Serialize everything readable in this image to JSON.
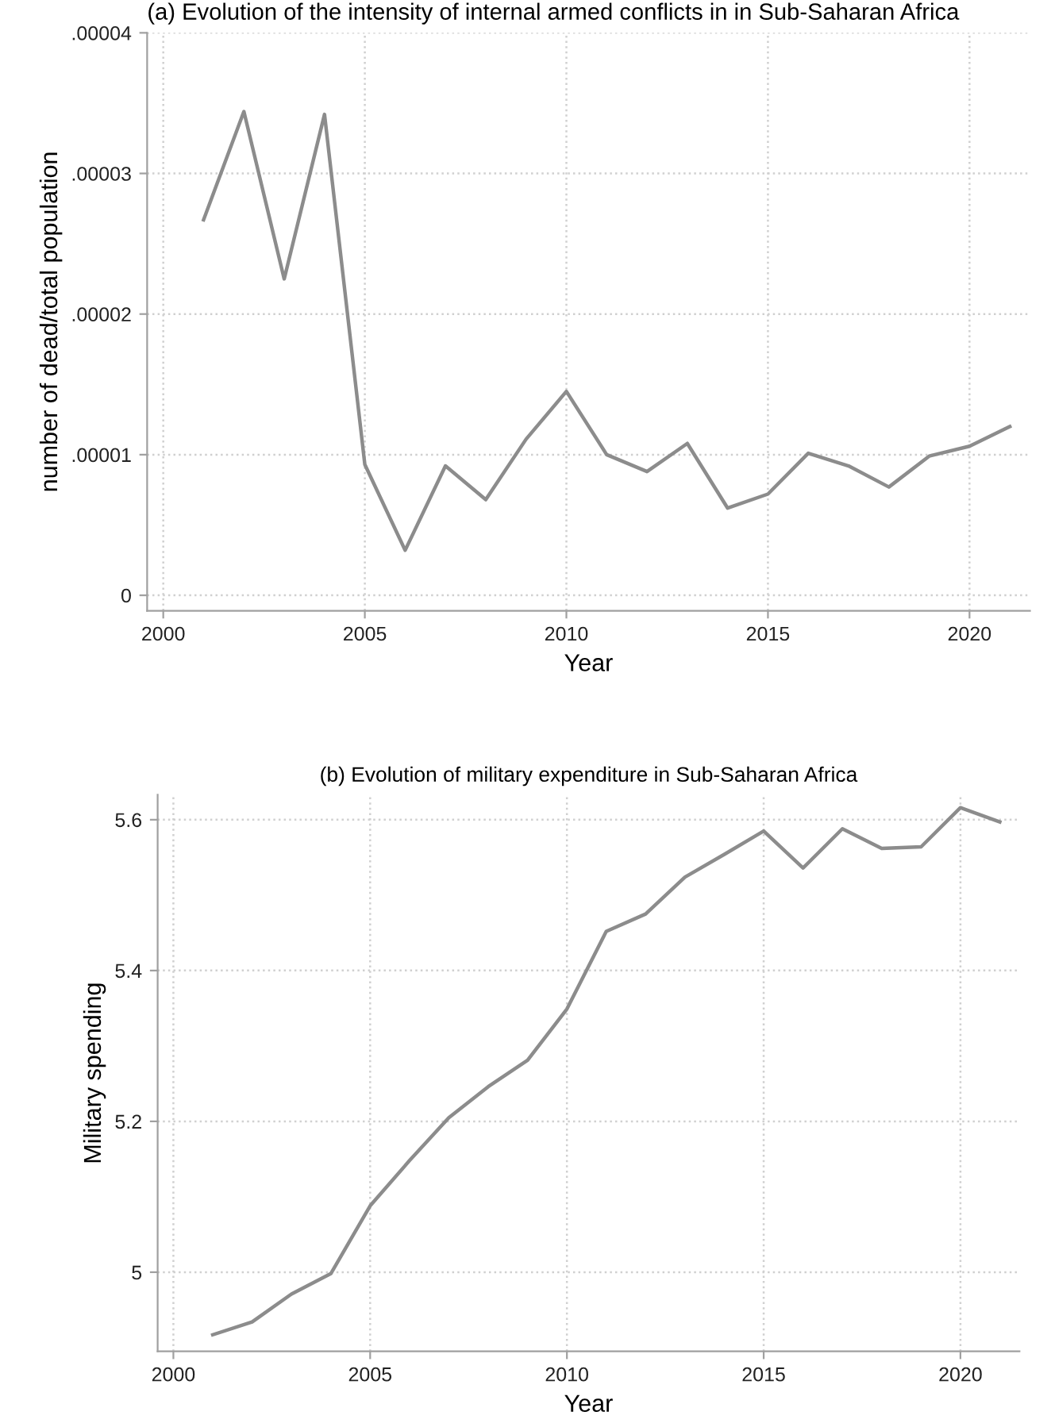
{
  "chart_data": [
    {
      "type": "line",
      "title": "(a) Evolution of the intensity of internal armed conflicts in in Sub-Saharan Africa",
      "xlabel": "Year",
      "ylabel": "number of dead/total population",
      "x": [
        2001,
        2002,
        2003,
        2004,
        2005,
        2006,
        2007,
        2008,
        2009,
        2010,
        2011,
        2012,
        2013,
        2014,
        2015,
        2016,
        2017,
        2018,
        2019,
        2020,
        2021
      ],
      "series": [
        {
          "color": "#8c8c8c",
          "values": [
            2.67e-05,
            3.44e-05,
            2.25e-05,
            3.42e-05,
            9.3e-06,
            3.2e-06,
            9.2e-06,
            6.8e-06,
            1.11e-05,
            1.45e-05,
            1e-05,
            8.8e-06,
            1.08e-05,
            6.2e-06,
            7.2e-06,
            1.01e-05,
            9.2e-06,
            7.7e-06,
            9.9e-06,
            1.06e-05,
            1.2e-05
          ]
        }
      ],
      "xlim": [
        1999.6,
        2021.5
      ],
      "ylim": [
        -1.1e-06,
        4e-05
      ],
      "xticks": [
        2000,
        2005,
        2010,
        2015,
        2020
      ],
      "yticks": [
        {
          "value": 0,
          "label": "0"
        },
        {
          "value": 1e-05,
          "label": ".00001"
        },
        {
          "value": 2e-05,
          "label": ".00002"
        },
        {
          "value": 3e-05,
          "label": ".00003"
        },
        {
          "value": 4e-05,
          "label": ".00004"
        }
      ],
      "grid": true,
      "marker": "none",
      "line_style": "solid"
    },
    {
      "type": "line",
      "title": "(b) Evolution of military expenditure in Sub-Saharan Africa",
      "xlabel": "Year",
      "ylabel": "Military spending",
      "x": [
        2001,
        2002,
        2003,
        2004,
        2005,
        2006,
        2007,
        2008,
        2009,
        2010,
        2011,
        2012,
        2013,
        2014,
        2015,
        2016,
        2017,
        2018,
        2019,
        2020,
        2021
      ],
      "series": [
        {
          "color": "#8c8c8c",
          "values": [
            4.917,
            4.934,
            4.971,
            4.998,
            5.088,
            5.148,
            5.205,
            5.246,
            5.281,
            5.349,
            5.452,
            5.475,
            5.524,
            5.554,
            5.585,
            5.536,
            5.588,
            5.562,
            5.564,
            5.616,
            5.597
          ]
        }
      ],
      "xlim": [
        1999.6,
        2021.5
      ],
      "ylim": [
        4.895,
        5.633
      ],
      "xticks": [
        2000,
        2005,
        2010,
        2015,
        2020
      ],
      "yticks": [
        {
          "value": 5,
          "label": "5"
        },
        5.2,
        5.4,
        5.6
      ],
      "grid": true,
      "marker": "none",
      "line_style": "solid"
    }
  ]
}
